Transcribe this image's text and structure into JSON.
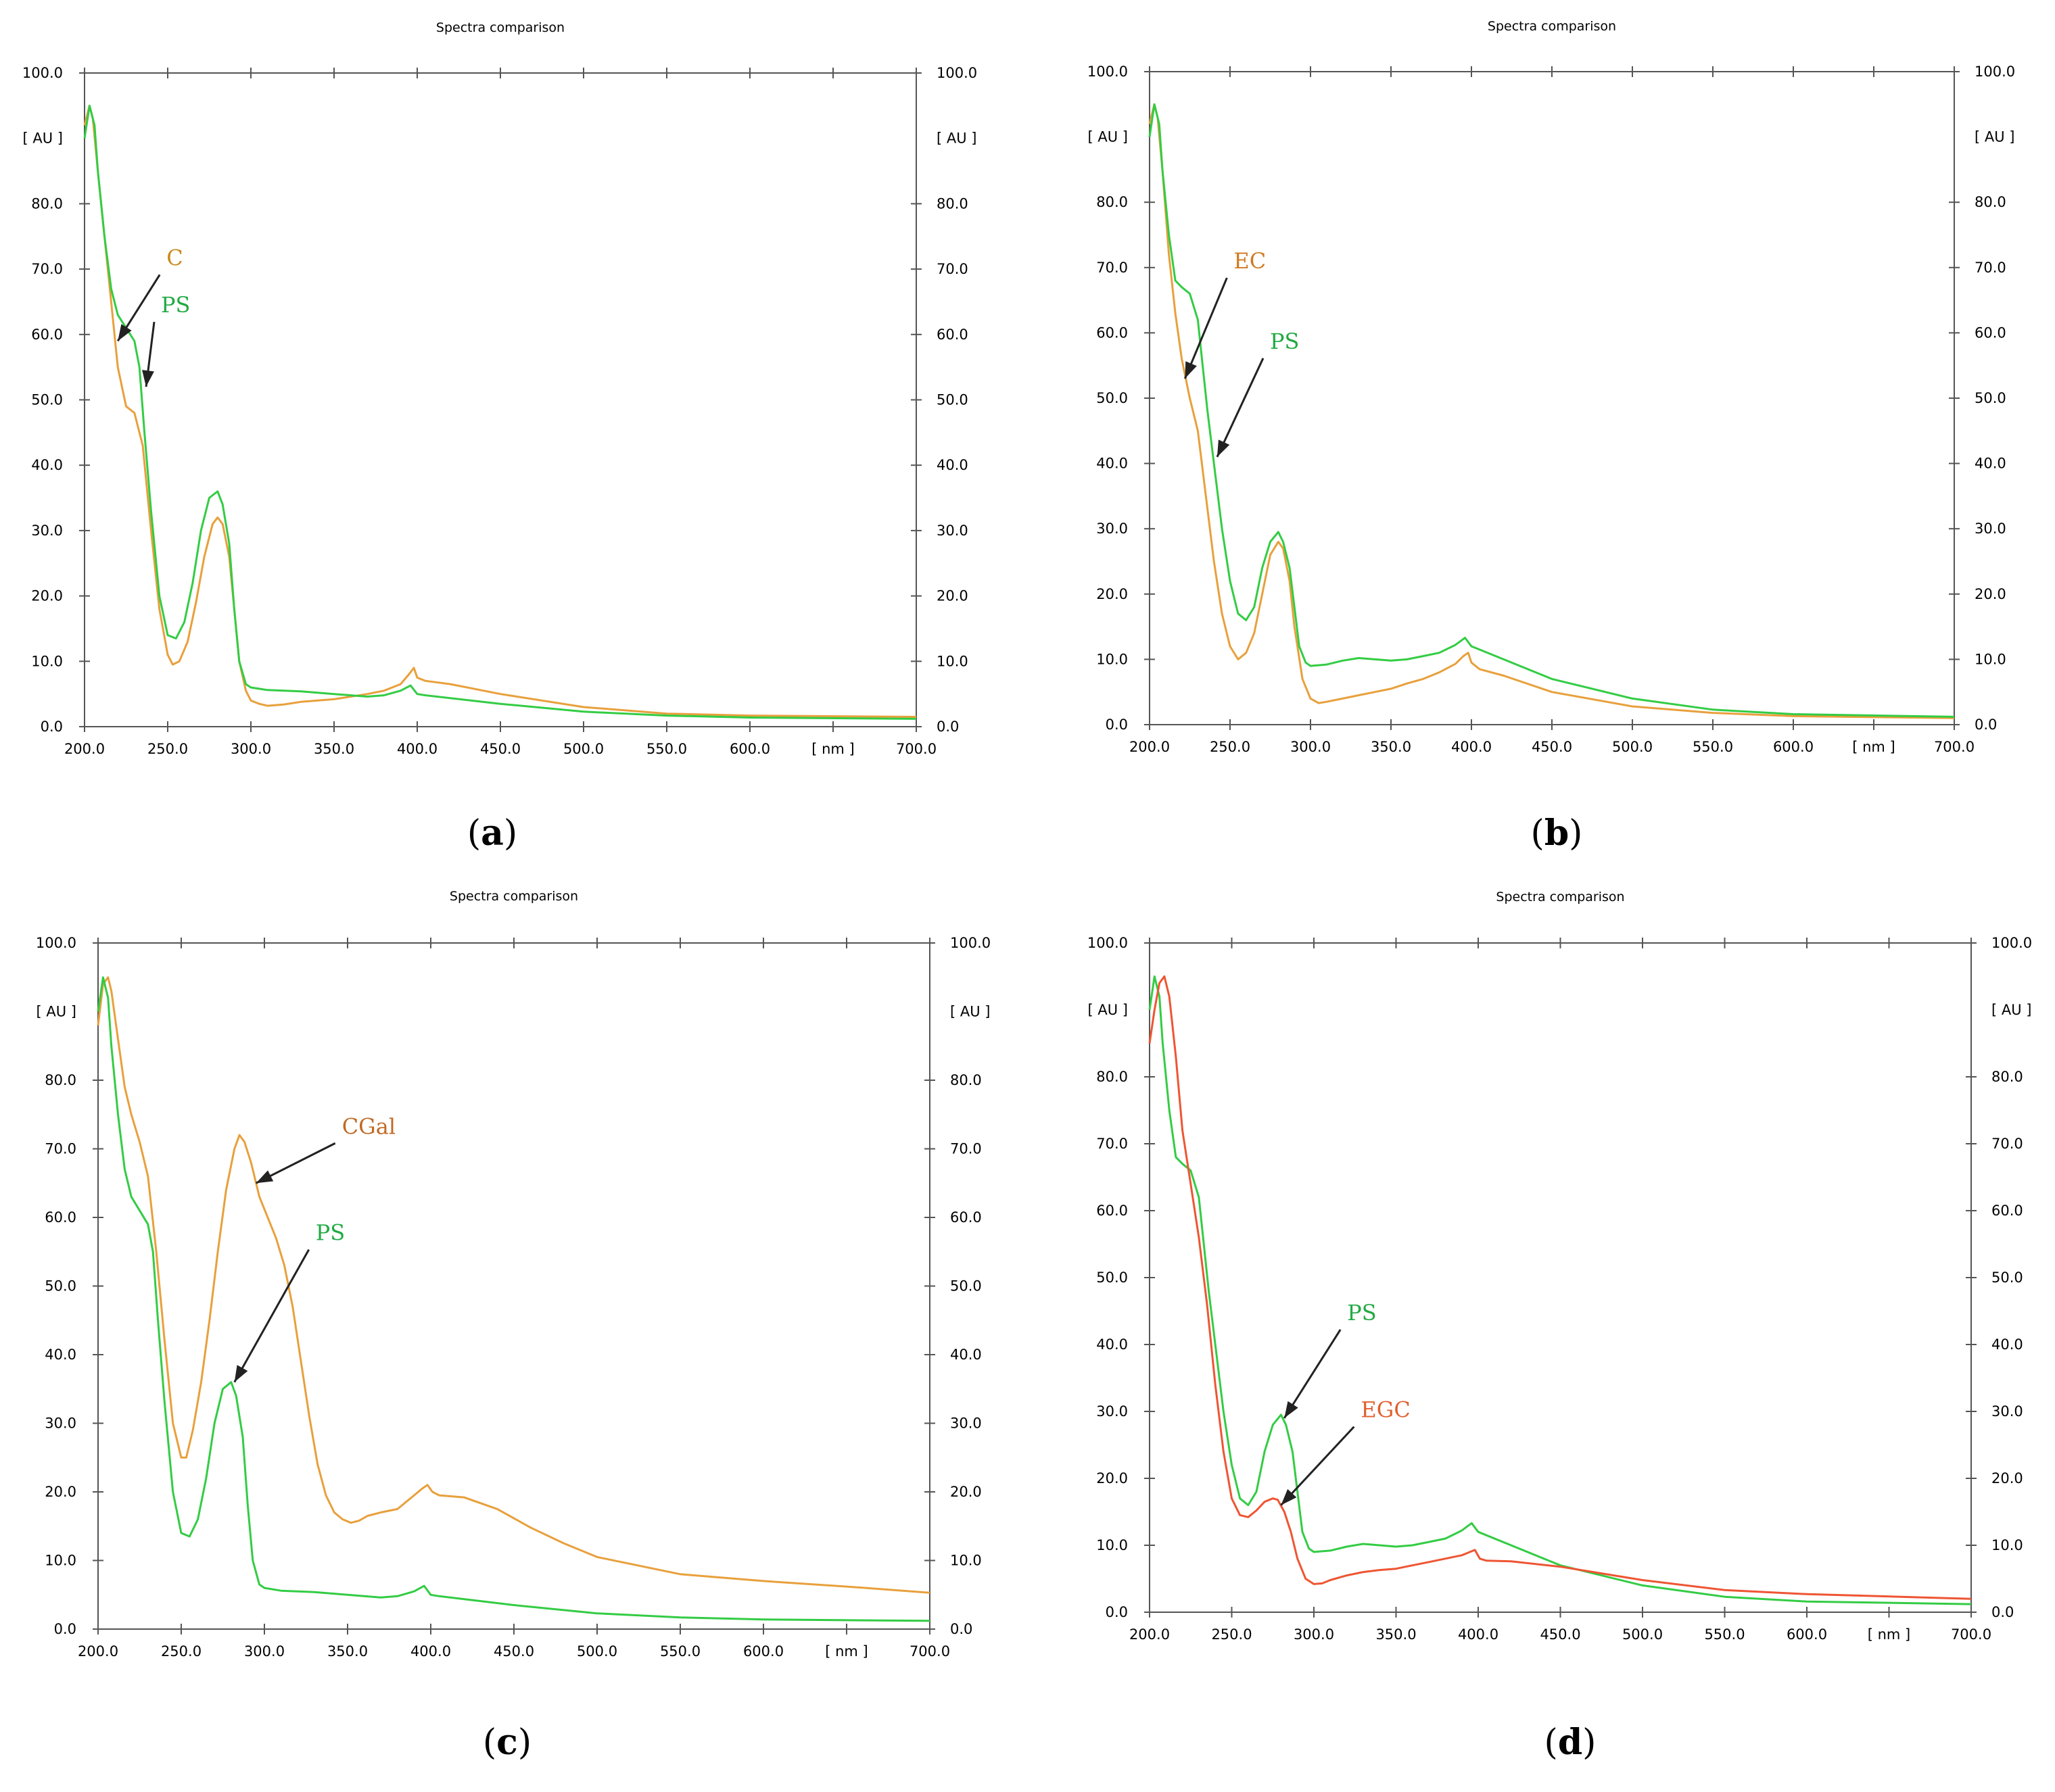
{
  "chart_data": [
    {
      "type": "line",
      "panel_label": "a",
      "title": "Spectra comparison",
      "xlabel": "[ nm ]",
      "ylabel": "[ AU ]",
      "xlim": [
        200,
        700
      ],
      "ylim": [
        0,
        100
      ],
      "x_ticks": [
        "200.0",
        "250.0",
        "300.0",
        "350.0",
        "400.0",
        "450.0",
        "500.0",
        "550.0",
        "600.0",
        "700.0"
      ],
      "y_ticks": [
        "0.0",
        "10.0",
        "20.0",
        "30.0",
        "40.0",
        "50.0",
        "60.0",
        "70.0",
        "80.0",
        "100.0"
      ],
      "series": [
        {
          "name": "C",
          "color": "#e8a03c",
          "label_color": "#c98a1a",
          "x": [
            200,
            203,
            205,
            208,
            212,
            216,
            220,
            225,
            230,
            235,
            240,
            245,
            250,
            253,
            257,
            262,
            267,
            272,
            277,
            280,
            283,
            287,
            290,
            293,
            297,
            300,
            305,
            310,
            320,
            330,
            350,
            370,
            380,
            390,
            395,
            398,
            400,
            405,
            420,
            450,
            500,
            550,
            600,
            700
          ],
          "y": [
            92,
            95,
            93,
            85,
            75,
            65,
            55,
            49,
            48,
            43,
            30,
            18,
            11,
            9.5,
            10,
            13,
            19,
            26,
            31,
            32,
            31,
            26,
            18,
            10,
            5.5,
            4,
            3.5,
            3.2,
            3.4,
            3.8,
            4.2,
            5,
            5.5,
            6.5,
            8,
            9,
            7.5,
            7,
            6.5,
            5,
            3,
            2,
            1.7,
            1.5
          ],
          "annotation": {
            "text": "C",
            "x": 220,
            "y": 59
          }
        },
        {
          "name": "PS",
          "color": "#33cc44",
          "label_color": "#22aa44",
          "x": [
            200,
            203,
            206,
            208,
            212,
            216,
            220,
            225,
            230,
            233,
            236,
            240,
            245,
            250,
            255,
            260,
            265,
            270,
            275,
            280,
            283,
            287,
            290,
            293,
            297,
            300,
            310,
            320,
            330,
            340,
            350,
            360,
            370,
            380,
            390,
            396,
            400,
            405,
            450,
            500,
            550,
            600,
            700
          ],
          "y": [
            90,
            95,
            92,
            85,
            75,
            67,
            63,
            61,
            59,
            55,
            45,
            33,
            20,
            14,
            13.5,
            16,
            22,
            30,
            35,
            36,
            34,
            28,
            18,
            10,
            6.5,
            6,
            5.6,
            5.5,
            5.4,
            5.2,
            5.0,
            4.8,
            4.6,
            4.8,
            5.5,
            6.3,
            5.0,
            4.8,
            3.5,
            2.3,
            1.7,
            1.4,
            1.2
          ],
          "annotation": {
            "text": "PS",
            "x": 237,
            "y": 52
          }
        }
      ]
    },
    {
      "type": "line",
      "panel_label": "b",
      "title": "Spectra comparison",
      "xlabel": "[ nm ]",
      "ylabel": "[ AU ]",
      "xlim": [
        200,
        700
      ],
      "ylim": [
        0,
        100
      ],
      "x_ticks": [
        "200.0",
        "250.0",
        "300.0",
        "350.0",
        "400.0",
        "450.0",
        "500.0",
        "550.0",
        "600.0",
        "700.0"
      ],
      "y_ticks": [
        "0.0",
        "10.0",
        "20.0",
        "30.0",
        "40.0",
        "50.0",
        "60.0",
        "70.0",
        "80.0",
        "100.0"
      ],
      "series": [
        {
          "name": "EC",
          "color": "#e8a03c",
          "label_color": "#d07a20",
          "x": [
            200,
            203,
            205,
            208,
            212,
            216,
            220,
            225,
            230,
            235,
            240,
            245,
            250,
            255,
            260,
            265,
            270,
            275,
            280,
            283,
            287,
            290,
            295,
            300,
            305,
            310,
            320,
            330,
            340,
            350,
            360,
            370,
            380,
            390,
            395,
            398,
            400,
            405,
            420,
            450,
            500,
            550,
            600,
            700
          ],
          "y": [
            92,
            95,
            93,
            85,
            72,
            63,
            56,
            50,
            45,
            35,
            25,
            17,
            12,
            10,
            11,
            14,
            20,
            26,
            28,
            27,
            22,
            15,
            7,
            4,
            3.3,
            3.5,
            4,
            4.5,
            5,
            5.5,
            6.3,
            7,
            8,
            9.3,
            10.5,
            11,
            9.5,
            8.5,
            7.5,
            5,
            2.8,
            1.8,
            1.3,
            1
          ],
          "annotation": {
            "text": "EC",
            "x": 222,
            "y": 53
          }
        },
        {
          "name": "PS",
          "color": "#33cc44",
          "label_color": "#22aa44",
          "x": [
            200,
            203,
            206,
            208,
            212,
            216,
            220,
            225,
            230,
            233,
            236,
            240,
            245,
            250,
            255,
            260,
            265,
            270,
            275,
            280,
            283,
            287,
            290,
            293,
            297,
            300,
            310,
            320,
            330,
            340,
            350,
            360,
            370,
            380,
            390,
            396,
            400,
            405,
            420,
            450,
            500,
            550,
            600,
            700
          ],
          "y": [
            90,
            95,
            92,
            85,
            75,
            68,
            67,
            66,
            62,
            55,
            48,
            40,
            30,
            22,
            17,
            16,
            18,
            24,
            28,
            29.5,
            28,
            24,
            18,
            12,
            9.5,
            9,
            9.2,
            9.8,
            10.2,
            10,
            9.8,
            10,
            10.5,
            11,
            12.2,
            13.3,
            12,
            11.5,
            10,
            7,
            4,
            2.3,
            1.6,
            1.2
          ],
          "annotation": {
            "text": "PS",
            "x": 242,
            "y": 41
          }
        }
      ]
    },
    {
      "type": "line",
      "panel_label": "c",
      "title": "Spectra comparison",
      "xlabel": "[ nm ]",
      "ylabel": "[ AU ]",
      "xlim": [
        200,
        700
      ],
      "ylim": [
        0,
        100
      ],
      "x_ticks": [
        "200.0",
        "250.0",
        "300.0",
        "350.0",
        "400.0",
        "450.0",
        "500.0",
        "550.0",
        "600.0",
        "700.0"
      ],
      "y_ticks": [
        "0.0",
        "10.0",
        "20.0",
        "30.0",
        "40.0",
        "50.0",
        "60.0",
        "70.0",
        "80.0",
        "100.0"
      ],
      "series": [
        {
          "name": "CGal",
          "color": "#e8a03c",
          "label_color": "#c06a25",
          "x": [
            200,
            203,
            206,
            208,
            212,
            216,
            220,
            225,
            230,
            235,
            240,
            245,
            250,
            253,
            257,
            262,
            267,
            272,
            277,
            282,
            285,
            288,
            292,
            297,
            302,
            307,
            312,
            317,
            322,
            327,
            332,
            337,
            342,
            347,
            352,
            357,
            362,
            370,
            380,
            390,
            395,
            398,
            401,
            405,
            420,
            440,
            460,
            480,
            500,
            550,
            600,
            650,
            700
          ],
          "y": [
            88,
            94,
            95,
            93,
            86,
            79,
            75,
            71,
            66,
            55,
            42,
            30,
            25,
            25,
            29,
            36,
            45,
            55,
            64,
            70,
            72,
            71,
            68,
            63,
            60,
            57,
            53,
            47,
            39,
            31,
            24,
            19.5,
            17,
            16,
            15.5,
            15.8,
            16.5,
            17,
            17.5,
            19.5,
            20.5,
            21,
            20,
            19.5,
            19.2,
            17.5,
            14.8,
            12.5,
            10.5,
            8,
            7,
            6.2,
            5.3
          ],
          "annotation": {
            "text": "CGal",
            "x": 295,
            "y": 65
          }
        },
        {
          "name": "PS",
          "color": "#33cc44",
          "label_color": "#22aa44",
          "x": [
            200,
            203,
            206,
            208,
            212,
            216,
            220,
            225,
            230,
            233,
            236,
            240,
            245,
            250,
            255,
            260,
            265,
            270,
            275,
            280,
            283,
            287,
            290,
            293,
            297,
            300,
            310,
            320,
            330,
            340,
            350,
            360,
            370,
            380,
            390,
            396,
            400,
            405,
            450,
            500,
            550,
            600,
            700
          ],
          "y": [
            90,
            95,
            92,
            85,
            75,
            67,
            63,
            61,
            59,
            55,
            45,
            33,
            20,
            14,
            13.5,
            16,
            22,
            30,
            35,
            36,
            34,
            28,
            18,
            10,
            6.5,
            6,
            5.6,
            5.5,
            5.4,
            5.2,
            5.0,
            4.8,
            4.6,
            4.8,
            5.5,
            6.3,
            5.0,
            4.8,
            3.5,
            2.3,
            1.7,
            1.4,
            1.2
          ],
          "annotation": {
            "text": "PS",
            "x": 282,
            "y": 36
          }
        }
      ]
    },
    {
      "type": "line",
      "panel_label": "d",
      "title": "Spectra comparison",
      "xlabel": "[ nm ]",
      "ylabel": "[ AU ]",
      "xlim": [
        200,
        700
      ],
      "ylim": [
        0,
        100
      ],
      "x_ticks": [
        "200.0",
        "250.0",
        "300.0",
        "350.0",
        "400.0",
        "450.0",
        "500.0",
        "550.0",
        "600.0",
        "700.0"
      ],
      "y_ticks": [
        "0.0",
        "10.0",
        "20.0",
        "30.0",
        "40.0",
        "50.0",
        "60.0",
        "70.0",
        "80.0",
        "100.0"
      ],
      "series": [
        {
          "name": "PS",
          "color": "#33cc44",
          "label_color": "#22aa44",
          "x": [
            200,
            203,
            206,
            208,
            212,
            216,
            220,
            225,
            230,
            233,
            236,
            240,
            245,
            250,
            255,
            260,
            265,
            270,
            275,
            280,
            283,
            287,
            290,
            293,
            297,
            300,
            310,
            320,
            330,
            340,
            350,
            360,
            370,
            380,
            390,
            396,
            400,
            405,
            420,
            450,
            500,
            550,
            600,
            700
          ],
          "y": [
            90,
            95,
            92,
            85,
            75,
            68,
            67,
            66,
            62,
            55,
            48,
            40,
            30,
            22,
            17,
            16,
            18,
            24,
            28,
            29.5,
            28,
            24,
            18,
            12,
            9.5,
            9,
            9.2,
            9.8,
            10.2,
            10,
            9.8,
            10,
            10.5,
            11,
            12.2,
            13.3,
            12,
            11.5,
            10,
            7,
            4,
            2.3,
            1.6,
            1.2
          ],
          "annotation": {
            "text": "PS",
            "x": 282,
            "y": 29
          }
        },
        {
          "name": "EGC",
          "color": "#ee5533",
          "label_color": "#e06030",
          "x": [
            200,
            203,
            206,
            209,
            212,
            216,
            220,
            225,
            230,
            235,
            240,
            245,
            250,
            255,
            260,
            265,
            270,
            275,
            278,
            282,
            286,
            290,
            295,
            300,
            305,
            310,
            320,
            330,
            340,
            350,
            360,
            370,
            380,
            390,
            395,
            398,
            401,
            405,
            420,
            450,
            500,
            550,
            600,
            700
          ],
          "y": [
            85,
            90,
            94,
            95,
            92,
            83,
            72,
            64,
            56,
            46,
            34,
            24,
            17,
            14.5,
            14.2,
            15.2,
            16.5,
            17,
            16.8,
            15,
            12,
            8,
            5,
            4.2,
            4.3,
            4.8,
            5.5,
            6,
            6.3,
            6.5,
            7,
            7.5,
            8,
            8.5,
            9,
            9.3,
            8,
            7.7,
            7.6,
            6.8,
            4.8,
            3.3,
            2.7,
            2
          ],
          "annotation": {
            "text": "EGC",
            "x": 280,
            "y": 16
          }
        }
      ]
    }
  ]
}
